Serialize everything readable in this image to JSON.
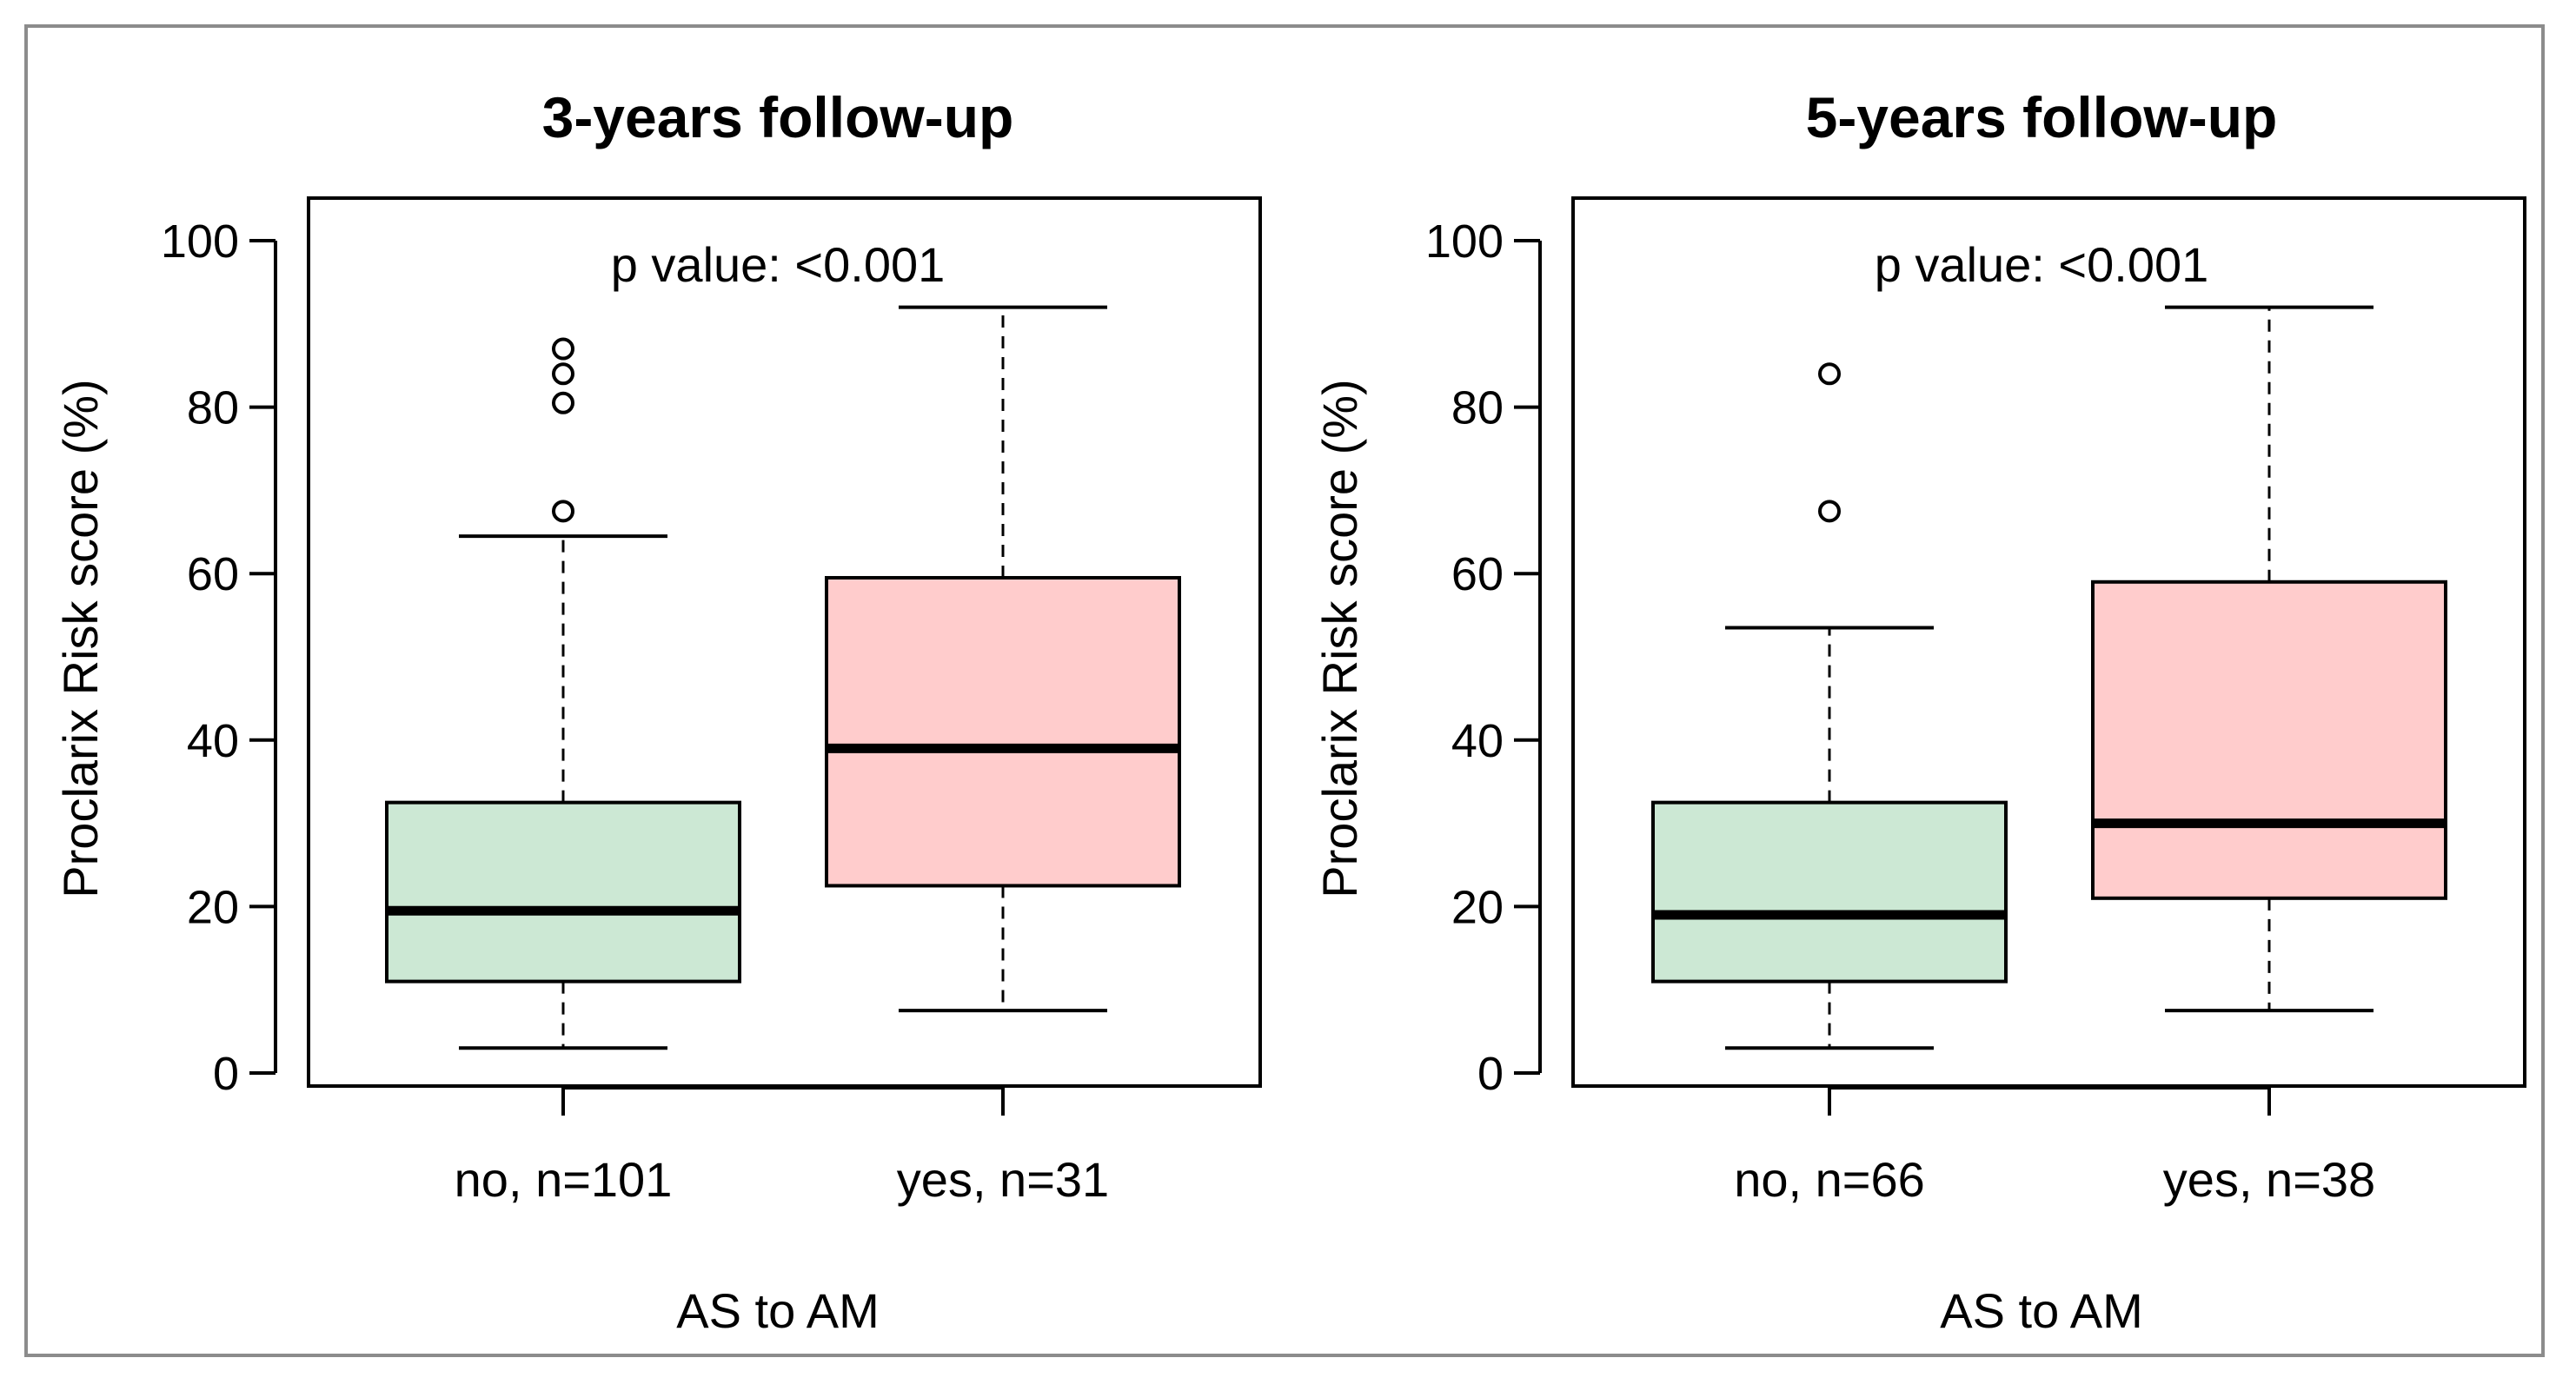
{
  "chart_data": [
    {
      "type": "box",
      "title": "3-years follow-up",
      "xlabel": "AS to AM",
      "ylabel": "Proclarix Risk score (%)",
      "ylim": [
        0,
        100
      ],
      "yticks": [
        "0",
        "20",
        "40",
        "60",
        "80",
        "100"
      ],
      "annotation": "p value: <0.001",
      "categories": [
        "no, n=101",
        "yes, n=31"
      ],
      "boxes": [
        {
          "category": "no, n=101",
          "whisker_low": 3,
          "q1": 11,
          "median": 19.5,
          "q3": 32.5,
          "whisker_high": 64.5,
          "outliers": [
            67.5,
            80.5,
            84,
            87
          ],
          "color": "#cce8d4"
        },
        {
          "category": "yes, n=31",
          "whisker_low": 7.5,
          "q1": 22.5,
          "median": 39,
          "q3": 59.5,
          "whisker_high": 92,
          "outliers": [],
          "color": "#ffcccc"
        }
      ]
    },
    {
      "type": "box",
      "title": "5-years follow-up",
      "xlabel": "AS to AM",
      "ylabel": "Proclarix Risk score (%)",
      "ylim": [
        0,
        100
      ],
      "yticks": [
        "0",
        "20",
        "40",
        "60",
        "80",
        "100"
      ],
      "annotation": "p value: <0.001",
      "categories": [
        "no, n=66",
        "yes, n=38"
      ],
      "boxes": [
        {
          "category": "no, n=66",
          "whisker_low": 3,
          "q1": 11,
          "median": 19,
          "q3": 32.5,
          "whisker_high": 53.5,
          "outliers": [
            67.5,
            84
          ],
          "color": "#cce8d4"
        },
        {
          "category": "yes, n=38",
          "whisker_low": 7.5,
          "q1": 21,
          "median": 30,
          "q3": 59,
          "whisker_high": 92,
          "outliers": [],
          "color": "#ffcccc"
        }
      ]
    }
  ]
}
